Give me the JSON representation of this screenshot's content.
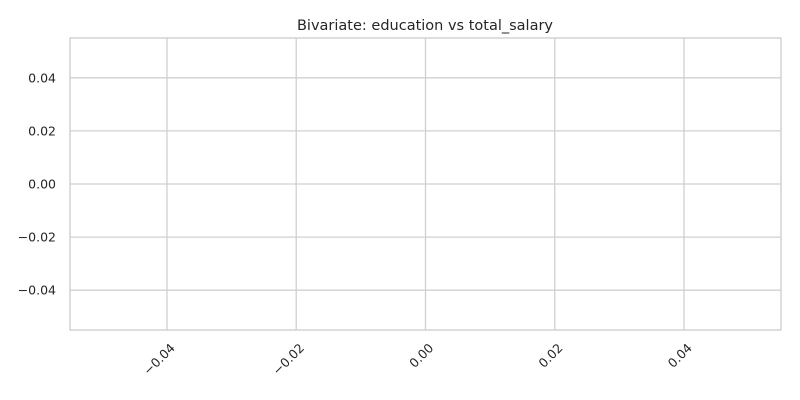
{
  "chart_data": {
    "type": "scatter",
    "title": "Bivariate: education vs total_salary",
    "xlabel": "",
    "ylabel": "",
    "x": [],
    "y": [],
    "xlim": [
      -0.055,
      0.055
    ],
    "ylim": [
      -0.055,
      0.055
    ],
    "x_ticks": [
      -0.04,
      -0.02,
      0.0,
      0.02,
      0.04
    ],
    "x_tick_labels": [
      "−0.04",
      "−0.02",
      "0.00",
      "0.02",
      "0.04"
    ],
    "x_tick_rotation": 45,
    "y_ticks": [
      0.04,
      0.02,
      0.0,
      -0.02,
      -0.04
    ],
    "y_tick_labels": [
      "0.04",
      "0.02",
      "0.00",
      "−0.02",
      "−0.04"
    ],
    "grid": true,
    "legend": "none",
    "colors": {
      "background": "#ffffff",
      "grid": "#d0d0d0",
      "frame": "#cccccc",
      "text": "#262626"
    }
  }
}
